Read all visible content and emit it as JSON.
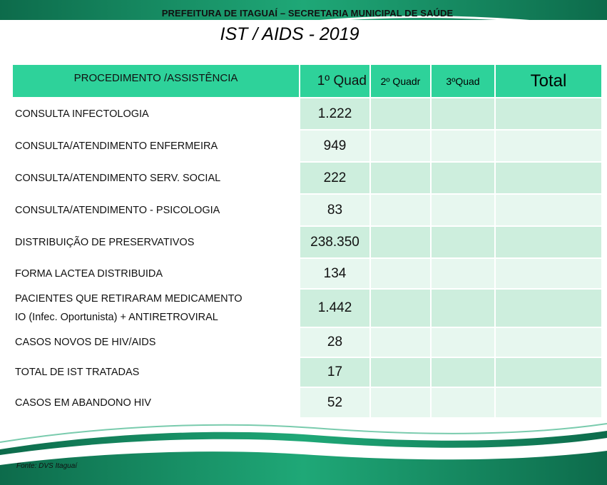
{
  "header": {
    "org_title": "PREFEITURA DE ITAGUAÍ – SECRETARIA MUNICIPAL DE SAÚDE",
    "slide_title": "IST / AIDS - 2019"
  },
  "table": {
    "columns": [
      "PROCEDIMENTO /ASSISTÊNCIA",
      "1º Quad",
      "2º Quadr",
      "3ºQuad",
      "Total"
    ],
    "rows": [
      {
        "label": "CONSULTA INFECTOLOGIA",
        "q1": "1.222",
        "q2": "",
        "q3": "",
        "total": ""
      },
      {
        "label": "CONSULTA/ATENDIMENTO ENFERMEIRA",
        "q1": "949",
        "q2": "",
        "q3": "",
        "total": ""
      },
      {
        "label": "CONSULTA/ATENDIMENTO SERV. SOCIAL",
        "q1": "222",
        "q2": "",
        "q3": "",
        "total": ""
      },
      {
        "label": "CONSULTA/ATENDIMENTO - PSICOLOGIA",
        "q1": "83",
        "q2": "",
        "q3": "",
        "total": ""
      },
      {
        "label": "DISTRIBUIÇÃO DE PRESERVATIVOS",
        "q1": "238.350",
        "q2": "",
        "q3": "",
        "total": ""
      },
      {
        "label": "FORMA LACTEA  DISTRIBUIDA",
        "q1": "134",
        "q2": "",
        "q3": "",
        "total": ""
      },
      {
        "label_line1": "PACIENTES QUE RETIRARAM MEDICAMENTO",
        "label_line2": "IO (Infec. Oportunista) + ANTIRETROVIRAL",
        "q1": "1.442",
        "q2": "",
        "q3": "",
        "total": ""
      },
      {
        "label": "CASOS NOVOS DE HIV/AIDS",
        "q1": "28",
        "q2": "",
        "q3": "",
        "total": ""
      },
      {
        "label": "TOTAL DE IST TRATADAS",
        "q1": "17",
        "q2": "",
        "q3": "",
        "total": ""
      },
      {
        "label": "CASOS EM ABANDONO HIV",
        "q1": "52",
        "q2": "",
        "q3": "",
        "total": ""
      }
    ]
  },
  "footer": {
    "source": "Fonte: DVS Itaguaí"
  },
  "colors": {
    "header_band": "#0a7a55",
    "header_accent": "#2ed29a",
    "table_head": "#2ed29a",
    "cell_dark": "#cdeedd",
    "cell_light": "#e7f7ef"
  }
}
